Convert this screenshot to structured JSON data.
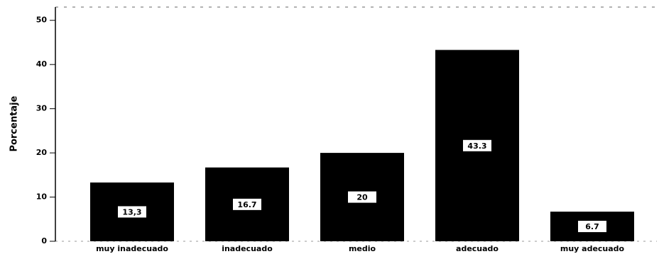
{
  "chart_data": {
    "type": "bar",
    "y_label": "Porcentaje",
    "categories": [
      "muy inadecuado",
      "inadecuado",
      "medio",
      "adecuado",
      "muy adecuado"
    ],
    "values": [
      13.3,
      16.7,
      20,
      43.3,
      6.7
    ],
    "value_labels": [
      "13,3",
      "16.7",
      "20",
      "43.3",
      "6.7"
    ],
    "color": "#000000",
    "ylim": [
      0,
      53
    ],
    "yticks": [
      0,
      10,
      20,
      30,
      40,
      50
    ]
  }
}
